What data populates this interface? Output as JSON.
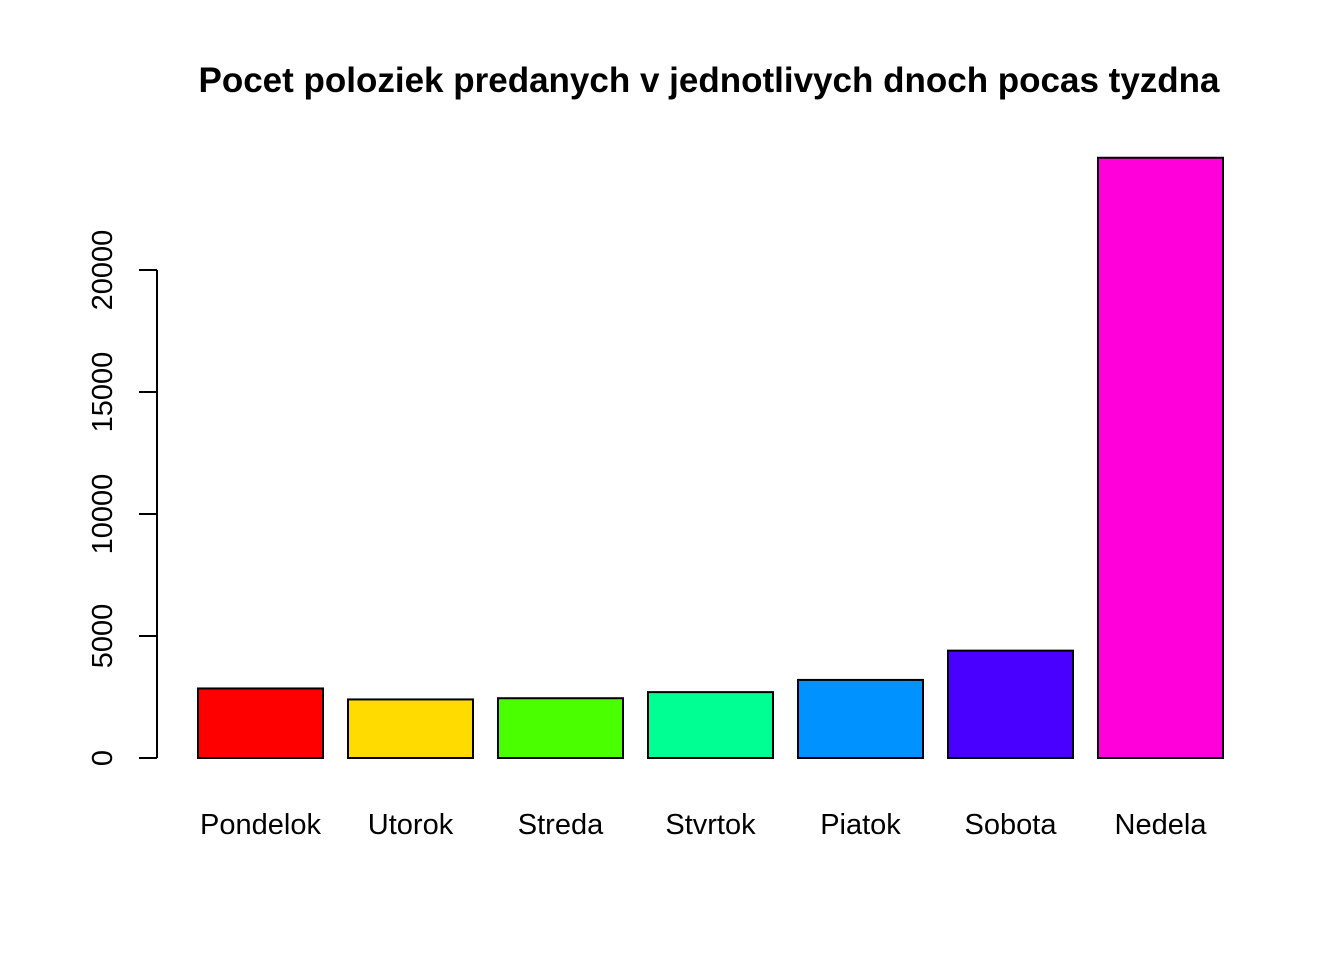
{
  "chart_data": {
    "type": "bar",
    "title": "Pocet poloziek predanych v jednotlivych dnoch pocas tyzdna",
    "xlabel": "",
    "ylabel": "",
    "categories": [
      "Pondelok",
      "Utorok",
      "Streda",
      "Stvrtok",
      "Piatok",
      "Sobota",
      "Nedela"
    ],
    "values": [
      2850,
      2400,
      2450,
      2700,
      3200,
      4400,
      24600
    ],
    "colors": [
      "#FF0000",
      "#FFDB00",
      "#49FF00",
      "#00FF92",
      "#0092FF",
      "#4900FF",
      "#FF00DB"
    ],
    "yticks": [
      0,
      5000,
      10000,
      15000,
      20000
    ],
    "ylim": [
      0,
      24600
    ],
    "grid": false,
    "legend": "none"
  }
}
